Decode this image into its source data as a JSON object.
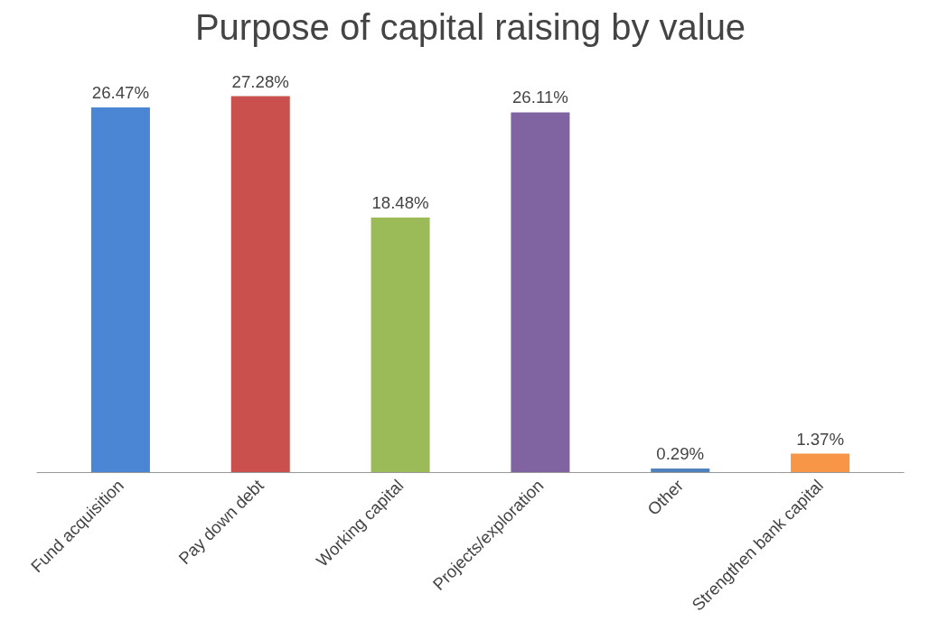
{
  "chart_data": {
    "type": "bar",
    "title": "Purpose of capital raising by value",
    "categories": [
      "Fund acquisition",
      "Pay down debt",
      "Working capital",
      "Projects/exploration",
      "Other",
      "Strengthen bank capital"
    ],
    "values": [
      26.47,
      27.28,
      18.48,
      26.11,
      0.29,
      1.37
    ],
    "value_labels": [
      "26.47%",
      "27.28%",
      "18.48%",
      "26.11%",
      "0.29%",
      "1.37%"
    ],
    "colors": [
      "#4a86d4",
      "#c9504d",
      "#9bbb59",
      "#8064a2",
      "#4f81bd",
      "#f79646"
    ],
    "tick_labels": "x"
  }
}
